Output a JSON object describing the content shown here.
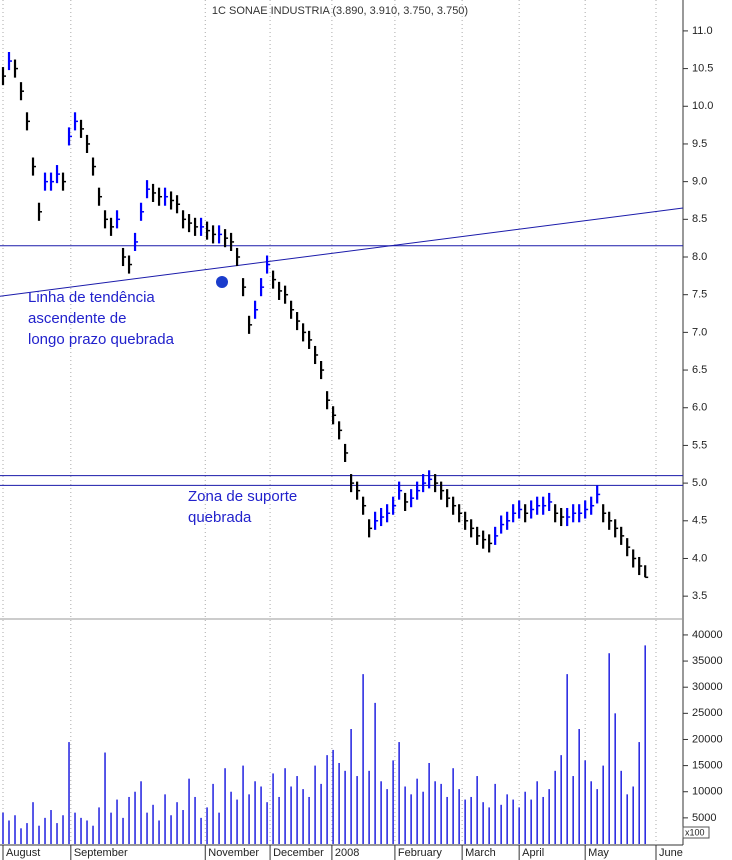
{
  "chart_data": [
    {
      "type": "ohlc",
      "title": "1C SONAE INDUSTRIA (3.890, 3.910, 3.750, 3.750)",
      "up_color": "#0000ff",
      "down_color": "#000000",
      "high": [
        10.52,
        10.72,
        10.62,
        10.32,
        9.92,
        9.32,
        8.72,
        9.12,
        9.12,
        9.22,
        9.12,
        9.72,
        9.92,
        9.82,
        9.62,
        9.32,
        8.92,
        8.62,
        8.52,
        8.62,
        8.12,
        8.02,
        8.32,
        8.72,
        9.02,
        8.97,
        8.92,
        8.92,
        8.87,
        8.82,
        8.62,
        8.57,
        8.52,
        8.52,
        8.47,
        8.42,
        8.42,
        8.37,
        8.32,
        8.12,
        7.72,
        7.22,
        7.42,
        7.72,
        8.02,
        7.82,
        7.67,
        7.62,
        7.42,
        7.27,
        7.12,
        7.02,
        6.82,
        6.62,
        6.22,
        6.02,
        5.82,
        5.52,
        5.12,
        5.02,
        4.82,
        4.52,
        4.62,
        4.67,
        4.72,
        4.82,
        5.02,
        4.87,
        4.92,
        5.02,
        5.12,
        5.17,
        5.12,
        5.02,
        4.92,
        4.82,
        4.72,
        4.62,
        4.52,
        4.42,
        4.37,
        4.32,
        4.42,
        4.57,
        4.62,
        4.72,
        4.77,
        4.72,
        4.77,
        4.82,
        4.82,
        4.87,
        4.72,
        4.67,
        4.67,
        4.72,
        4.72,
        4.77,
        4.82,
        4.97,
        4.72,
        4.62,
        4.52,
        4.42,
        4.27,
        4.12,
        4.02,
        3.91
      ],
      "low": [
        10.28,
        10.48,
        10.38,
        10.08,
        9.68,
        9.08,
        8.48,
        8.88,
        8.88,
        8.98,
        8.88,
        9.48,
        9.68,
        9.58,
        9.38,
        9.08,
        8.68,
        8.38,
        8.28,
        8.38,
        7.88,
        7.78,
        8.08,
        8.48,
        8.78,
        8.73,
        8.68,
        8.68,
        8.63,
        8.58,
        8.38,
        8.33,
        8.28,
        8.28,
        8.23,
        8.18,
        8.18,
        8.13,
        8.08,
        7.88,
        7.48,
        6.98,
        7.18,
        7.48,
        7.78,
        7.58,
        7.43,
        7.38,
        7.18,
        7.03,
        6.88,
        6.78,
        6.58,
        6.38,
        5.98,
        5.78,
        5.58,
        5.28,
        4.88,
        4.78,
        4.58,
        4.28,
        4.38,
        4.43,
        4.48,
        4.58,
        4.78,
        4.63,
        4.68,
        4.78,
        4.88,
        4.93,
        4.88,
        4.78,
        4.68,
        4.58,
        4.48,
        4.38,
        4.28,
        4.18,
        4.13,
        4.08,
        4.18,
        4.33,
        4.38,
        4.48,
        4.53,
        4.48,
        4.53,
        4.58,
        4.58,
        4.63,
        4.48,
        4.43,
        4.43,
        4.48,
        4.48,
        4.53,
        4.58,
        4.73,
        4.48,
        4.38,
        4.28,
        4.18,
        4.03,
        3.88,
        3.78,
        3.75
      ],
      "close": [
        10.4,
        10.6,
        10.5,
        10.2,
        9.8,
        9.2,
        8.6,
        9.0,
        9.0,
        9.1,
        9.0,
        9.6,
        9.8,
        9.7,
        9.5,
        9.2,
        8.8,
        8.5,
        8.4,
        8.5,
        8.0,
        7.9,
        8.2,
        8.6,
        8.9,
        8.85,
        8.8,
        8.8,
        8.75,
        8.7,
        8.5,
        8.45,
        8.4,
        8.4,
        8.35,
        8.3,
        8.3,
        8.25,
        8.2,
        8.0,
        7.6,
        7.1,
        7.3,
        7.6,
        7.9,
        7.7,
        7.55,
        7.5,
        7.3,
        7.15,
        7.0,
        6.9,
        6.7,
        6.5,
        6.1,
        5.9,
        5.7,
        5.4,
        5.0,
        4.9,
        4.7,
        4.4,
        4.5,
        4.55,
        4.6,
        4.7,
        4.9,
        4.75,
        4.8,
        4.9,
        5.0,
        5.05,
        5.0,
        4.9,
        4.8,
        4.7,
        4.6,
        4.5,
        4.4,
        4.3,
        4.25,
        4.2,
        4.3,
        4.45,
        4.5,
        4.6,
        4.65,
        4.6,
        4.65,
        4.7,
        4.7,
        4.75,
        4.6,
        4.55,
        4.55,
        4.6,
        4.6,
        4.65,
        4.7,
        4.85,
        4.6,
        4.5,
        4.4,
        4.3,
        4.15,
        4.0,
        3.9,
        3.75
      ],
      "xlim": [
        -0.5,
        113.3
      ],
      "xticks": [
        {
          "value": 0,
          "label": "August"
        },
        {
          "value": 11.3,
          "label": "September"
        },
        {
          "value": 33.7,
          "label": "November"
        },
        {
          "value": 44.5,
          "label": "December"
        },
        {
          "value": 54.8,
          "label": "2008"
        },
        {
          "value": 65.3,
          "label": "February"
        },
        {
          "value": 76.5,
          "label": "March"
        },
        {
          "value": 86,
          "label": "April"
        },
        {
          "value": 97,
          "label": "May"
        },
        {
          "value": 108.8,
          "label": "June"
        }
      ],
      "ylim": [
        3.25,
        11.41
      ],
      "yticks": [
        3.5,
        {
          "value": 4,
          "label": "4.0"
        },
        4.5,
        {
          "value": 5,
          "label": "5.0"
        },
        5.5,
        {
          "value": 6,
          "label": "6.0"
        },
        6.5,
        {
          "value": 7,
          "label": "7.0"
        },
        7.5,
        {
          "value": 8,
          "label": "8.0"
        },
        8.5,
        {
          "value": 9,
          "label": "9.0"
        },
        9.5,
        {
          "value": 10,
          "label": "10.0"
        },
        10.5,
        {
          "value": 11,
          "label": "11.0"
        }
      ],
      "line_color": "#1a1aaa",
      "lines": [
        {
          "y": 8.15
        },
        {
          "y": 5.1
        },
        {
          "y": 4.97
        }
      ],
      "trendline": {
        "x": [
          -0.5,
          113.3
        ],
        "y": [
          7.48,
          8.65
        ]
      },
      "annotations": [
        {
          "lines": [
            "Linha de tendência",
            "ascendente de",
            "longo prazo quebrada"
          ]
        },
        {
          "lines": [
            "Zona de suporte",
            "quebrada"
          ]
        }
      ]
    },
    {
      "type": "bar",
      "color": "#2020e0",
      "unit": "x100",
      "values": [
        6000,
        4500,
        5500,
        3000,
        4000,
        8000,
        3500,
        5000,
        6500,
        4000,
        5500,
        19500,
        6000,
        5000,
        4500,
        3500,
        7000,
        17500,
        6000,
        8500,
        5000,
        9000,
        10000,
        12000,
        6000,
        7500,
        4500,
        9500,
        5500,
        8000,
        6500,
        12500,
        9000,
        5000,
        7000,
        11500,
        6000,
        14500,
        10000,
        8500,
        15000,
        9500,
        12000,
        11000,
        8000,
        13500,
        9000,
        14500,
        11000,
        13000,
        10500,
        9000,
        15000,
        11500,
        17000,
        18000,
        15500,
        14000,
        22000,
        13000,
        32500,
        14000,
        27000,
        12000,
        10500,
        16000,
        19500,
        11000,
        9500,
        12500,
        10000,
        15500,
        12000,
        11500,
        9000,
        14500,
        10500,
        8500,
        9000,
        13000,
        8000,
        7000,
        11500,
        7500,
        9500,
        8500,
        7000,
        10000,
        8500,
        12000,
        9000,
        10500,
        14000,
        17000,
        32500,
        13000,
        22000,
        16000,
        12000,
        10500,
        15000,
        36500,
        25000,
        14000,
        9500,
        11000,
        19500,
        38000
      ],
      "ylim": [
        0,
        41900
      ],
      "yticks": [
        5000,
        10000,
        15000,
        20000,
        25000,
        30000,
        35000,
        40000
      ]
    }
  ]
}
